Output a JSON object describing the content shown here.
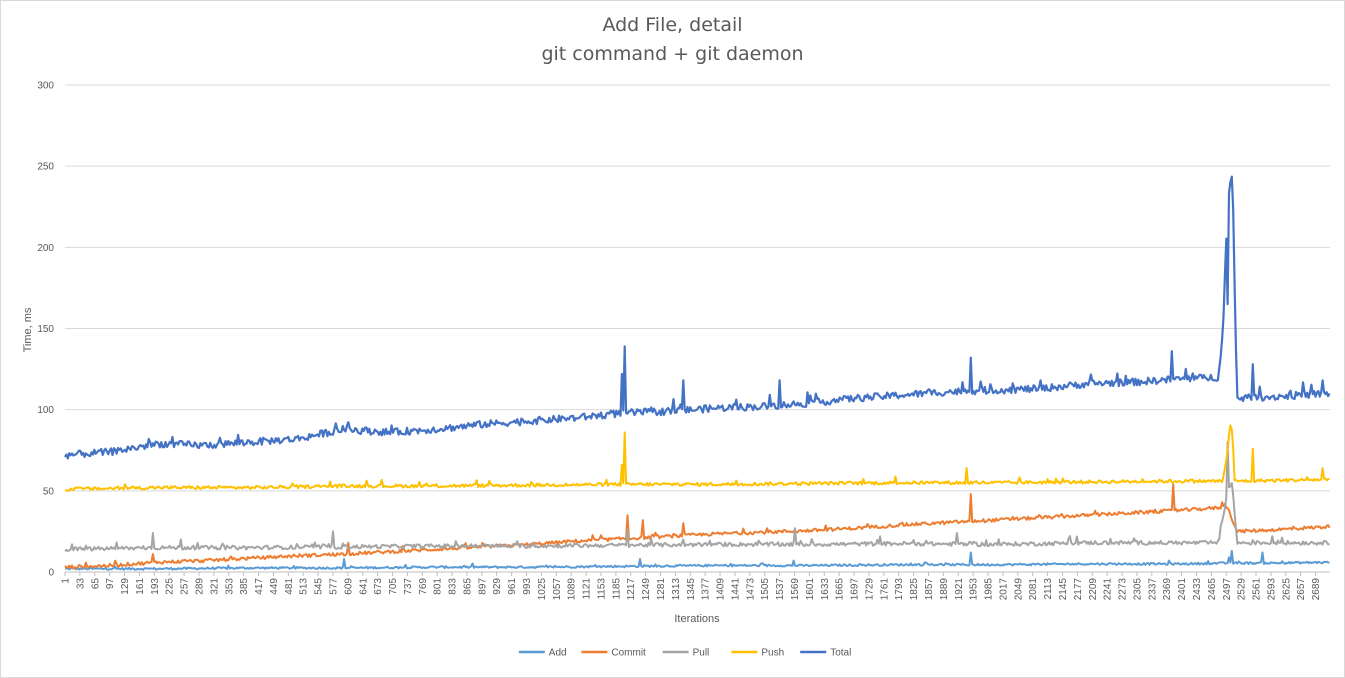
{
  "chart_data": {
    "type": "line",
    "title": "Add File, detail",
    "subtitle": "git command + git daemon",
    "xlabel": "Iterations",
    "ylabel": "Time, ms",
    "ylim": [
      0,
      300
    ],
    "yticks": [
      0,
      50,
      100,
      150,
      200,
      250,
      300
    ],
    "grid": true,
    "legend_position": "bottom",
    "x_range": [
      1,
      2720
    ],
    "x_tick_labels": [
      "1",
      "33",
      "65",
      "97",
      "129",
      "161",
      "193",
      "225",
      "257",
      "289",
      "321",
      "353",
      "385",
      "417",
      "449",
      "481",
      "513",
      "545",
      "577",
      "609",
      "641",
      "673",
      "705",
      "737",
      "769",
      "801",
      "833",
      "865",
      "897",
      "929",
      "961",
      "993",
      "1025",
      "1057",
      "1089",
      "1121",
      "1153",
      "1185",
      "1217",
      "1249",
      "1281",
      "1313",
      "1345",
      "1377",
      "1409",
      "1441",
      "1473",
      "1505",
      "1537",
      "1569",
      "1601",
      "1633",
      "1665",
      "1697",
      "1729",
      "1761",
      "1793",
      "1825",
      "1857",
      "1889",
      "1921",
      "1953",
      "1985",
      "2017",
      "2049",
      "2081",
      "2113",
      "2145",
      "2177",
      "2209",
      "2241",
      "2273",
      "2305",
      "2337",
      "2369",
      "2401",
      "2433",
      "2465",
      "2497",
      "2529",
      "2561",
      "2593",
      "2625",
      "2657",
      "2689"
    ],
    "series": [
      {
        "name": "Add",
        "color": "#5b9bd5",
        "x": [
          1,
          200,
          400,
          600,
          800,
          1000,
          1200,
          1400,
          1600,
          1800,
          2000,
          2200,
          2400,
          2500,
          2600,
          2720
        ],
        "values": [
          2,
          2,
          2.5,
          2.5,
          3,
          3,
          3.5,
          4,
          4,
          4.5,
          4.5,
          5,
          5,
          5.5,
          5.5,
          6
        ],
        "noise": 0.6,
        "spikes": [
          [
            602,
            8
          ],
          [
            1950,
            12
          ],
          [
            1238,
            8
          ],
          [
            1567,
            7
          ],
          [
            2375,
            7
          ],
          [
            2511,
            13
          ],
          [
            2576,
            12
          ],
          [
            2505,
            9
          ]
        ]
      },
      {
        "name": "Commit",
        "color": "#ed7d31",
        "x": [
          1,
          100,
          200,
          300,
          400,
          500,
          600,
          700,
          800,
          900,
          1000,
          1100,
          1200,
          1300,
          1400,
          1500,
          1600,
          1700,
          1800,
          1900,
          2000,
          2100,
          2200,
          2300,
          2400,
          2500,
          2520,
          2600,
          2720
        ],
        "values": [
          3,
          4,
          6,
          7,
          8.5,
          10,
          11,
          12.5,
          14,
          15.5,
          17,
          19,
          20.5,
          22,
          23.5,
          24.5,
          25.5,
          27,
          29,
          30.5,
          32,
          33.5,
          35,
          36.5,
          38,
          40,
          25,
          26,
          28
        ],
        "noise": 1.0,
        "spikes": [
          [
            192,
            11
          ],
          [
            611,
            18
          ],
          [
            1210,
            35
          ],
          [
            1245,
            32
          ],
          [
            1330,
            30
          ],
          [
            1950,
            48
          ],
          [
            2383,
            54
          ],
          [
            2489,
            43
          ],
          [
            2495,
            42
          ]
        ]
      },
      {
        "name": "Pull",
        "color": "#a5a5a5",
        "x": [
          1,
          200,
          400,
          600,
          800,
          1000,
          1200,
          1400,
          1600,
          1800,
          2000,
          2200,
          2400,
          2480,
          2500,
          2510,
          2520,
          2720
        ],
        "values": [
          14,
          15,
          15,
          15.5,
          16,
          16,
          16.5,
          17,
          17,
          17.5,
          17,
          18,
          18,
          18,
          50,
          55,
          18,
          18
        ],
        "noise": 1.2,
        "spikes": [
          [
            192,
            24
          ],
          [
            250,
            20
          ],
          [
            579,
            25
          ],
          [
            1210,
            26
          ],
          [
            1330,
            20
          ],
          [
            1570,
            27
          ],
          [
            1920,
            24
          ],
          [
            2500,
            80
          ],
          [
            2597,
            22
          ]
        ]
      },
      {
        "name": "Push",
        "color": "#ffc000",
        "x": [
          1,
          200,
          400,
          600,
          800,
          1000,
          1200,
          1400,
          1600,
          1800,
          2000,
          2200,
          2400,
          2490,
          2500,
          2505,
          2510,
          2515,
          2720
        ],
        "values": [
          51,
          52,
          52,
          53,
          53,
          53.5,
          54,
          54,
          54.5,
          55,
          55,
          55.5,
          56,
          56,
          75,
          90,
          88,
          56,
          57
        ],
        "noise": 1.0,
        "spikes": [
          [
            1205,
            86
          ],
          [
            1200,
            66
          ],
          [
            1940,
            64
          ],
          [
            2555,
            76
          ],
          [
            2705,
            64
          ]
        ]
      },
      {
        "name": "Total",
        "color": "#4472c4",
        "x": [
          1,
          100,
          200,
          300,
          400,
          500,
          600,
          700,
          800,
          900,
          1000,
          1100,
          1200,
          1300,
          1400,
          1500,
          1600,
          1700,
          1800,
          1900,
          2000,
          2100,
          2200,
          2300,
          2400,
          2480,
          2490,
          2500,
          2510,
          2520,
          2530,
          2600,
          2720
        ],
        "values": [
          72,
          74,
          79,
          78,
          80,
          82,
          88,
          86,
          88,
          91,
          93,
          95,
          98,
          99,
          101,
          102,
          104,
          107,
          109,
          111,
          112,
          113,
          116,
          117,
          119,
          120,
          150,
          228,
          244,
          108,
          107,
          108,
          110
        ],
        "noise": 2.2,
        "spikes": [
          [
            1205,
            139
          ],
          [
            1200,
            122
          ],
          [
            1330,
            118
          ],
          [
            1537,
            118
          ],
          [
            1950,
            132
          ],
          [
            2100,
            118
          ],
          [
            2380,
            136
          ],
          [
            2555,
            128
          ],
          [
            2706,
            118
          ],
          [
            2500,
            165
          ]
        ]
      }
    ]
  }
}
